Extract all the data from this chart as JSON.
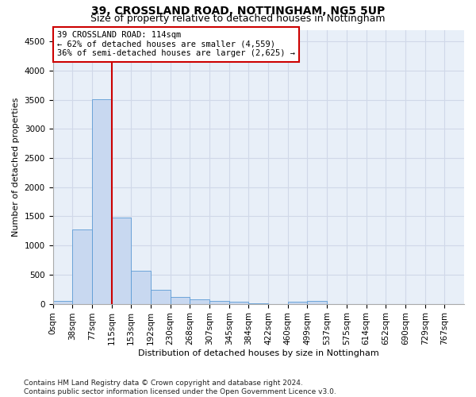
{
  "title1": "39, CROSSLAND ROAD, NOTTINGHAM, NG5 5UP",
  "title2": "Size of property relative to detached houses in Nottingham",
  "xlabel": "Distribution of detached houses by size in Nottingham",
  "ylabel": "Number of detached properties",
  "footnote": "Contains HM Land Registry data © Crown copyright and database right 2024.\nContains public sector information licensed under the Open Government Licence v3.0.",
  "bin_labels": [
    "0sqm",
    "38sqm",
    "77sqm",
    "115sqm",
    "153sqm",
    "192sqm",
    "230sqm",
    "268sqm",
    "307sqm",
    "345sqm",
    "384sqm",
    "422sqm",
    "460sqm",
    "499sqm",
    "537sqm",
    "575sqm",
    "614sqm",
    "652sqm",
    "690sqm",
    "729sqm",
    "767sqm"
  ],
  "bar_values": [
    50,
    1280,
    3510,
    1480,
    570,
    240,
    115,
    80,
    55,
    30,
    5,
    0,
    30,
    55,
    0,
    0,
    0,
    0,
    0,
    0,
    0
  ],
  "bar_color": "#c8d8f0",
  "bar_edge_color": "#5b9bd5",
  "property_line_bin_index": 3,
  "annotation_line1": "39 CROSSLAND ROAD: 114sqm",
  "annotation_line2": "← 62% of detached houses are smaller (4,559)",
  "annotation_line3": "36% of semi-detached houses are larger (2,625) →",
  "annotation_box_color": "#ffffff",
  "annotation_box_edge": "#cc0000",
  "property_line_color": "#cc0000",
  "ylim": [
    0,
    4700
  ],
  "yticks": [
    0,
    500,
    1000,
    1500,
    2000,
    2500,
    3000,
    3500,
    4000,
    4500
  ],
  "grid_color": "#d0d8e8",
  "bg_color": "#e8eff8",
  "title1_fontsize": 10,
  "title2_fontsize": 9,
  "axis_label_fontsize": 8,
  "tick_fontsize": 7.5,
  "footnote_fontsize": 6.5
}
